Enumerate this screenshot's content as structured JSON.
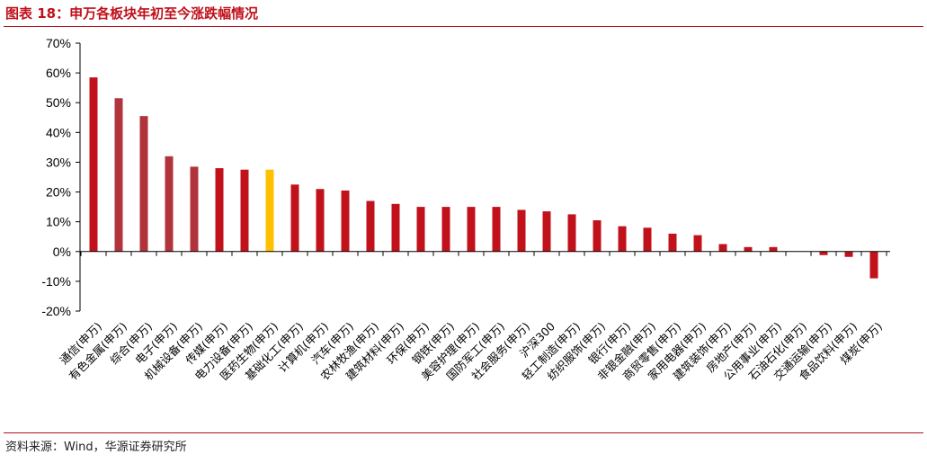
{
  "header": {
    "title": "图表 18：申万各板块年初至今涨跌幅情况"
  },
  "footer": {
    "source": "资料来源：Wind，华源证券研究所"
  },
  "colors": {
    "accent_red": "#b5121b",
    "title_color": "#c0101a",
    "bar_default": "#c1121c",
    "bar_highlight_alt": "#b1343c",
    "bar_highlight": "#ffc000"
  },
  "chart_data": {
    "type": "bar",
    "categories": [
      "通信(申万)",
      "有色金属(申万)",
      "综合(申万)",
      "电子(申万)",
      "机械设备(申万)",
      "传媒(申万)",
      "电力设备(申万)",
      "医药生物(申万)",
      "基础化工(申万)",
      "计算机(申万)",
      "汽车(申万)",
      "农林牧渔(申万)",
      "建筑材料(申万)",
      "环保(申万)",
      "钢铁(申万)",
      "美容护理(申万)",
      "国防军工(申万)",
      "社会服务(申万)",
      "沪深300",
      "轻工制造(申万)",
      "纺织服饰(申万)",
      "银行(申万)",
      "非银金融(申万)",
      "商贸零售(申万)",
      "家用电器(申万)",
      "建筑装饰(申万)",
      "房地产(申万)",
      "公用事业(申万)",
      "石油石化(申万)",
      "交通运输(申万)",
      "食品饮料(申万)",
      "煤炭(申万)"
    ],
    "values": [
      58.5,
      51.5,
      45.5,
      32.0,
      28.5,
      28.0,
      27.5,
      27.5,
      22.5,
      21.0,
      20.5,
      17.0,
      16.0,
      15.0,
      15.0,
      15.0,
      15.0,
      14.0,
      13.5,
      12.5,
      10.5,
      8.5,
      8.0,
      6.0,
      5.5,
      2.5,
      1.5,
      1.5,
      0.0,
      -1.2,
      -1.8,
      -9.0
    ],
    "bar_styles": [
      "default",
      "alt",
      "alt",
      "alt",
      "alt",
      "default",
      "default",
      "highlight",
      "default",
      "default",
      "default",
      "default",
      "default",
      "default",
      "default",
      "default",
      "default",
      "default",
      "default",
      "default",
      "default",
      "default",
      "default",
      "default",
      "default",
      "default",
      "default",
      "default",
      "default",
      "default",
      "default",
      "default"
    ],
    "yticks": [
      "70%",
      "60%",
      "50%",
      "40%",
      "30%",
      "20%",
      "10%",
      "0%",
      "-10%",
      "-20%"
    ],
    "ylim": [
      -20,
      70
    ],
    "grid": false,
    "legend": "none"
  }
}
